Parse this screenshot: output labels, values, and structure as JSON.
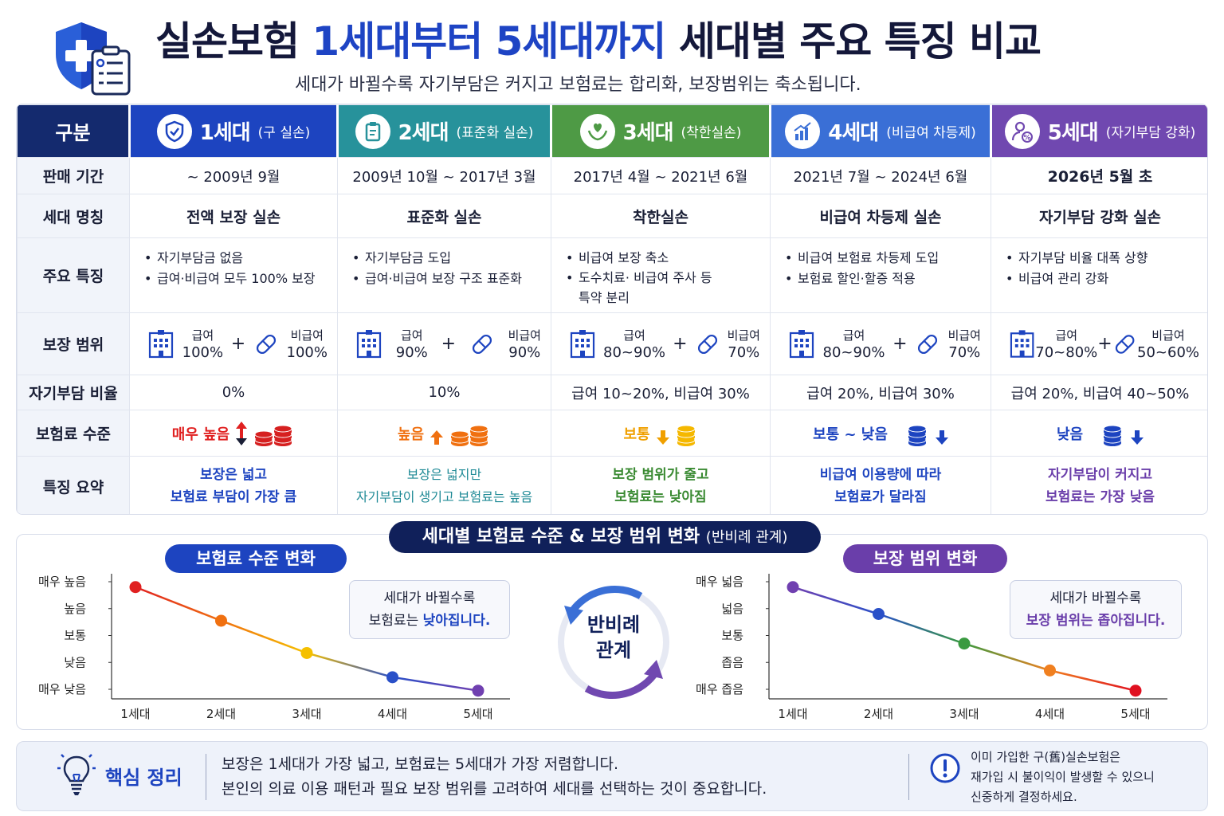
{
  "header": {
    "title_a": "실손보험 ",
    "title_b": "1세대부터 5세대까지",
    "title_c": " 세대별 주요 특징 비교",
    "subtitle": "세대가 바뀔수록 자기부담은 커지고 보험료는 합리화, 보장범위는 축소됩니다."
  },
  "table": {
    "corner": "구분",
    "row_labels": [
      "판매 기간",
      "세대 명칭",
      "주요 특징",
      "보장 범위",
      "자기부담 비율",
      "보험료 수준",
      "특징 요약"
    ],
    "cov_label_a": "급여",
    "cov_label_b": "비급여",
    "plus": "+",
    "generations": [
      {
        "gen": "1세대",
        "sub": "(구 실손)",
        "color": "#1d44c0",
        "icon": "shield-check-icon",
        "period": "~ 2009년 9월",
        "name": "전액 보장 실손",
        "features": [
          "자기부담금 없음",
          "급여·비급여 모두 100% 보장"
        ],
        "cov_a": "100%",
        "cov_b": "100%",
        "ratio": "0%",
        "level": "매우 높음",
        "level_color": "#e02020",
        "trend": "up-down",
        "summary_1": "보장은 넓고",
        "summary_2": "보험료 부담이 가장 큼",
        "summary_color": "#1d44c0"
      },
      {
        "gen": "2세대",
        "sub": "(표준화 실손)",
        "color": "#27929b",
        "icon": "clipboard-icon",
        "period": "2009년 10월 ~ 2017년 3월",
        "name": "표준화 실손",
        "features": [
          "자기부담금 도입",
          "급여·비급여 보장 구조 표준화"
        ],
        "cov_a": "90%",
        "cov_b": "90%",
        "ratio": "10%",
        "level": "높음",
        "level_color": "#f07010",
        "trend": "up",
        "summary_1": "보장은 넓지만",
        "summary_2": "자기부담이 생기고 보험료는 높음",
        "summary_color": "#1f8a96"
      },
      {
        "gen": "3세대",
        "sub": "(착한실손)",
        "color": "#4e9a45",
        "icon": "hands-heart-icon",
        "period": "2017년 4월 ~ 2021년 6월",
        "name": "착한실손",
        "features": [
          "비급여 보장 축소",
          "도수치료· 비급여 주사 등",
          "특약 분리"
        ],
        "cov_a": "80~90%",
        "cov_b": "70%",
        "ratio": "급여 10~20%, 비급여 30%",
        "level": "보통",
        "level_color": "#f0a000",
        "trend": "down",
        "summary_1": "보장 범위가 줄고",
        "summary_2": "보험료는 낮아짐",
        "summary_color": "#3a8a32"
      },
      {
        "gen": "4세대",
        "sub": "(비급여 차등제)",
        "color": "#3a6fd6",
        "icon": "bar-chart-icon",
        "period": "2021년 7월 ~ 2024년 6월",
        "name": "비급여 차등제 실손",
        "features": [
          "비급여 보험료 차등제 도입",
          "보험료 할인·할증 적용"
        ],
        "cov_a": "80~90%",
        "cov_b": "70%",
        "ratio": "급여 20%, 비급여 30%",
        "level": "보통 ~ 낮음",
        "level_color": "#1d44c0",
        "trend": "down",
        "summary_1": "비급여 이용량에 따라",
        "summary_2": "보험료가 달라짐",
        "summary_color": "#1d44c0"
      },
      {
        "gen": "5세대",
        "sub": "(자기부담 강화)",
        "color": "#7048b0",
        "icon": "person-percent-icon",
        "period": "2026년 5월 초",
        "name": "자기부담 강화 실손",
        "features": [
          "자기부담 비율 대폭 상향",
          "비급여 관리 강화"
        ],
        "cov_a": "70~80%",
        "cov_b": "50~60%",
        "ratio": "급여 20%, 비급여 40~50%",
        "level": "낮음",
        "level_color": "#1d44c0",
        "trend": "down",
        "summary_1": "자기부담이 커지고",
        "summary_2": "보험료는 가장 낮음",
        "summary_color": "#6a3eaa"
      }
    ]
  },
  "charts_section": {
    "main_label": "세대별 보험료 수준 & 보장 범위 변화",
    "main_label_sub": "(반비례 관계)",
    "center_1": "반비례",
    "center_2": "관계"
  },
  "chart_data": [
    {
      "type": "line",
      "title": "보험료 수준 변화",
      "categories": [
        "1세대",
        "2세대",
        "3세대",
        "4세대",
        "5세대"
      ],
      "y_ticks": [
        "매우 높음",
        "높음",
        "보통",
        "낮음",
        "매우 낮음"
      ],
      "values": [
        4.8,
        3.55,
        2.35,
        1.45,
        0.95
      ],
      "ylim": [
        1,
        5
      ],
      "point_colors": [
        "#e02020",
        "#f07010",
        "#f5c000",
        "#2a50c8",
        "#7040b0"
      ],
      "note_1": "세대가 바뀔수록",
      "note_2a": "보험료는 ",
      "note_2b": "낮아집니다."
    },
    {
      "type": "line",
      "title": "보장 범위 변화",
      "categories": [
        "1세대",
        "2세대",
        "3세대",
        "4세대",
        "5세대"
      ],
      "y_ticks": [
        "매우 넓음",
        "넓음",
        "보통",
        "좁음",
        "매우 좁음"
      ],
      "values": [
        4.8,
        3.8,
        2.7,
        1.7,
        0.95
      ],
      "ylim": [
        1,
        5
      ],
      "point_colors": [
        "#7040b0",
        "#2a50c8",
        "#3a9a40",
        "#f08020",
        "#e01020"
      ],
      "note_1": "세대가 바뀔수록",
      "note_2": "보장 범위는 좁아집니다."
    }
  ],
  "footer": {
    "title": "핵심 정리",
    "line_1": "보장은 1세대가 가장 넓고, 보험료는 5세대가 가장 저렴합니다.",
    "line_2": "본인의 의료 이용 패턴과 필요 보장 범위를 고려하여 세대를 선택하는 것이 중요합니다.",
    "warn_1": "이미 가입한 구(舊)실손보험은",
    "warn_2": "재가입 시 불이익이 발생할 수 있으니",
    "warn_3": "신중하게 결정하세요."
  }
}
